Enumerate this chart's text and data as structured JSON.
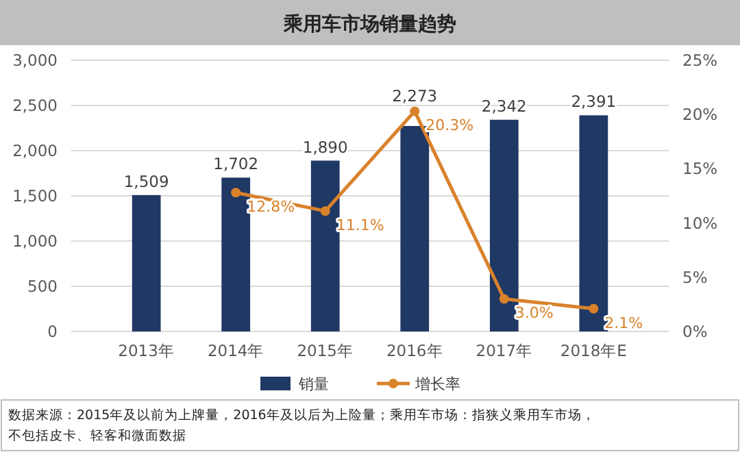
{
  "chart_data": {
    "type": "bar",
    "title": "乘用车市场销量趋势",
    "categories": [
      "2013年",
      "2014年",
      "2015年",
      "2016年",
      "2017年",
      "2018年E"
    ],
    "series": [
      {
        "name": "销量",
        "color": "#203864",
        "values": [
          1509,
          1702,
          1890,
          2273,
          2342,
          2391
        ],
        "value_labels": [
          "1,509",
          "1,702",
          "1,890",
          "2,273",
          "2,342",
          "2,391"
        ]
      },
      {
        "name": "增长率",
        "type": "line",
        "axis": "y2",
        "color": "#d9822b",
        "marker": "circle",
        "values": [
          null,
          12.8,
          11.1,
          20.3,
          3.0,
          2.1
        ],
        "value_labels": [
          null,
          "12.8%",
          "11.1%",
          "20.3%",
          "3.0%",
          "2.1%"
        ]
      }
    ],
    "ylim": [
      0,
      3000
    ],
    "yticks": [
      {
        "value": 0,
        "label": "0"
      },
      {
        "value": 500,
        "label": "500"
      },
      {
        "value": 1000,
        "label": "1,000"
      },
      {
        "value": 1500,
        "label": "1,500"
      },
      {
        "value": 2000,
        "label": "2,000"
      },
      {
        "value": 2500,
        "label": "2,500"
      },
      {
        "value": 3000,
        "label": "3,000"
      }
    ],
    "y2lim": [
      0,
      25
    ],
    "y2ticks": [
      {
        "value": 0,
        "label": "0%"
      },
      {
        "value": 5,
        "label": "5%"
      },
      {
        "value": 10,
        "label": "10%"
      },
      {
        "value": 15,
        "label": "15%"
      },
      {
        "value": 20,
        "label": "20%"
      },
      {
        "value": 25,
        "label": "25%"
      }
    ],
    "grid": "y",
    "legend": "bottom",
    "annotations": [
      "数据来源：2015年及以前为上牌量，2016年及以后为上险量；乘用车市场：指狭义乘用车市场，",
      "不包括皮卡、轻客和微面数据"
    ]
  }
}
